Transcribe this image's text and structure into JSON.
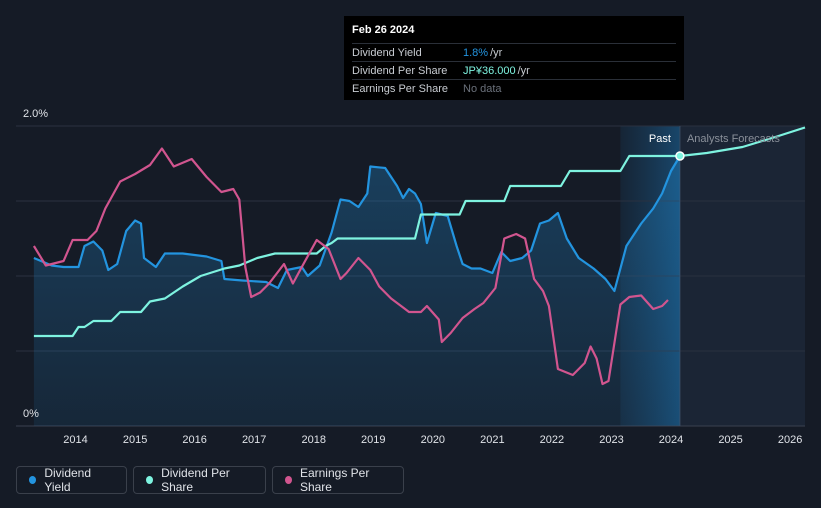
{
  "tooltip": {
    "date": "Feb 26 2024",
    "rows": [
      {
        "label": "Dividend Yield",
        "value": "1.8%",
        "unit": "/yr",
        "color": "#2394df"
      },
      {
        "label": "Dividend Per Share",
        "value": "JP¥36.000",
        "unit": "/yr",
        "color": "#7ef3e0"
      },
      {
        "label": "Earnings Per Share",
        "value": "No data",
        "unit": "",
        "color": "#6b717b"
      }
    ]
  },
  "labels": {
    "past": "Past",
    "forecast": "Analysts Forecasts",
    "y_top": "2.0%",
    "y_bottom": "0%"
  },
  "legend": [
    {
      "label": "Dividend Yield",
      "color": "#2394df"
    },
    {
      "label": "Dividend Per Share",
      "color": "#7ef3e0"
    },
    {
      "label": "Earnings Per Share",
      "color": "#d1558f"
    }
  ],
  "chart_data": {
    "type": "line",
    "x_ticks": [
      "2014",
      "2015",
      "2016",
      "2017",
      "2018",
      "2019",
      "2020",
      "2021",
      "2022",
      "2023",
      "2024",
      "2025",
      "2026"
    ],
    "x_range": [
      2013.0,
      2026.25
    ],
    "ylim": [
      0,
      2.0
    ],
    "y_unit": "%",
    "y_tick_labels": [
      "0%",
      "2.0%"
    ],
    "past_end": 2024.15,
    "highlight_start": 2023.15,
    "series": [
      {
        "name": "Dividend Yield",
        "color": "#2394df",
        "filled": true,
        "points": [
          [
            2013.3,
            1.12
          ],
          [
            2013.6,
            1.07
          ],
          [
            2013.8,
            1.06
          ],
          [
            2014.05,
            1.06
          ],
          [
            2014.15,
            1.2
          ],
          [
            2014.3,
            1.23
          ],
          [
            2014.45,
            1.17
          ],
          [
            2014.55,
            1.04
          ],
          [
            2014.7,
            1.08
          ],
          [
            2014.85,
            1.3
          ],
          [
            2015.0,
            1.37
          ],
          [
            2015.1,
            1.35
          ],
          [
            2015.15,
            1.12
          ],
          [
            2015.35,
            1.06
          ],
          [
            2015.5,
            1.15
          ],
          [
            2015.8,
            1.15
          ],
          [
            2016.2,
            1.13
          ],
          [
            2016.45,
            1.1
          ],
          [
            2016.5,
            0.98
          ],
          [
            2016.8,
            0.97
          ],
          [
            2017.2,
            0.96
          ],
          [
            2017.4,
            0.92
          ],
          [
            2017.55,
            1.04
          ],
          [
            2017.8,
            1.06
          ],
          [
            2017.9,
            1.0
          ],
          [
            2018.1,
            1.07
          ],
          [
            2018.3,
            1.29
          ],
          [
            2018.45,
            1.51
          ],
          [
            2018.6,
            1.5
          ],
          [
            2018.75,
            1.46
          ],
          [
            2018.9,
            1.55
          ],
          [
            2018.95,
            1.73
          ],
          [
            2019.2,
            1.72
          ],
          [
            2019.4,
            1.6
          ],
          [
            2019.5,
            1.52
          ],
          [
            2019.6,
            1.58
          ],
          [
            2019.7,
            1.55
          ],
          [
            2019.8,
            1.48
          ],
          [
            2019.9,
            1.22
          ],
          [
            2020.05,
            1.42
          ],
          [
            2020.25,
            1.4
          ],
          [
            2020.4,
            1.2
          ],
          [
            2020.5,
            1.08
          ],
          [
            2020.65,
            1.05
          ],
          [
            2020.8,
            1.05
          ],
          [
            2021.0,
            1.02
          ],
          [
            2021.15,
            1.16
          ],
          [
            2021.3,
            1.1
          ],
          [
            2021.5,
            1.12
          ],
          [
            2021.65,
            1.17
          ],
          [
            2021.8,
            1.35
          ],
          [
            2021.95,
            1.37
          ],
          [
            2022.1,
            1.42
          ],
          [
            2022.25,
            1.25
          ],
          [
            2022.45,
            1.12
          ],
          [
            2022.7,
            1.05
          ],
          [
            2022.9,
            0.98
          ],
          [
            2023.05,
            0.9
          ],
          [
            2023.25,
            1.2
          ],
          [
            2023.5,
            1.35
          ],
          [
            2023.7,
            1.45
          ],
          [
            2023.85,
            1.55
          ],
          [
            2024.0,
            1.7
          ],
          [
            2024.15,
            1.8
          ]
        ]
      },
      {
        "name": "Dividend Per Share",
        "color": "#7ef3e0",
        "filled": false,
        "points": [
          [
            2013.3,
            0.6
          ],
          [
            2013.95,
            0.6
          ],
          [
            2014.05,
            0.66
          ],
          [
            2014.15,
            0.66
          ],
          [
            2014.3,
            0.7
          ],
          [
            2014.6,
            0.7
          ],
          [
            2014.75,
            0.76
          ],
          [
            2015.1,
            0.76
          ],
          [
            2015.25,
            0.83
          ],
          [
            2015.5,
            0.85
          ],
          [
            2015.8,
            0.93
          ],
          [
            2016.1,
            1.0
          ],
          [
            2016.5,
            1.05
          ],
          [
            2016.75,
            1.07
          ],
          [
            2017.05,
            1.12
          ],
          [
            2017.35,
            1.15
          ],
          [
            2018.05,
            1.15
          ],
          [
            2018.2,
            1.2
          ],
          [
            2018.3,
            1.22
          ],
          [
            2018.4,
            1.25
          ],
          [
            2019.7,
            1.25
          ],
          [
            2019.8,
            1.41
          ],
          [
            2020.45,
            1.41
          ],
          [
            2020.55,
            1.5
          ],
          [
            2021.2,
            1.5
          ],
          [
            2021.3,
            1.6
          ],
          [
            2022.15,
            1.6
          ],
          [
            2022.3,
            1.7
          ],
          [
            2023.15,
            1.7
          ],
          [
            2023.3,
            1.8
          ],
          [
            2024.15,
            1.8
          ],
          [
            2024.6,
            1.82
          ],
          [
            2025.2,
            1.86
          ],
          [
            2025.7,
            1.92
          ],
          [
            2026.25,
            1.99
          ]
        ]
      },
      {
        "name": "Earnings Per Share",
        "color": "#d1558f",
        "filled": false,
        "points": [
          [
            2013.3,
            1.2
          ],
          [
            2013.5,
            1.07
          ],
          [
            2013.8,
            1.1
          ],
          [
            2013.95,
            1.24
          ],
          [
            2014.2,
            1.24
          ],
          [
            2014.35,
            1.3
          ],
          [
            2014.5,
            1.45
          ],
          [
            2014.75,
            1.63
          ],
          [
            2015.0,
            1.68
          ],
          [
            2015.25,
            1.74
          ],
          [
            2015.45,
            1.85
          ],
          [
            2015.65,
            1.73
          ],
          [
            2015.95,
            1.78
          ],
          [
            2016.2,
            1.66
          ],
          [
            2016.45,
            1.56
          ],
          [
            2016.65,
            1.58
          ],
          [
            2016.75,
            1.51
          ],
          [
            2016.85,
            1.06
          ],
          [
            2016.95,
            0.86
          ],
          [
            2017.1,
            0.89
          ],
          [
            2017.25,
            0.95
          ],
          [
            2017.5,
            1.08
          ],
          [
            2017.65,
            0.95
          ],
          [
            2017.8,
            1.06
          ],
          [
            2018.05,
            1.24
          ],
          [
            2018.25,
            1.18
          ],
          [
            2018.45,
            0.98
          ],
          [
            2018.55,
            1.02
          ],
          [
            2018.75,
            1.12
          ],
          [
            2018.95,
            1.04
          ],
          [
            2019.1,
            0.93
          ],
          [
            2019.3,
            0.85
          ],
          [
            2019.5,
            0.79
          ],
          [
            2019.6,
            0.76
          ],
          [
            2019.8,
            0.76
          ],
          [
            2019.9,
            0.8
          ],
          [
            2020.1,
            0.71
          ],
          [
            2020.15,
            0.56
          ],
          [
            2020.3,
            0.62
          ],
          [
            2020.5,
            0.72
          ],
          [
            2020.7,
            0.78
          ],
          [
            2020.85,
            0.82
          ],
          [
            2021.05,
            0.92
          ],
          [
            2021.2,
            1.25
          ],
          [
            2021.4,
            1.28
          ],
          [
            2021.55,
            1.25
          ],
          [
            2021.7,
            0.98
          ],
          [
            2021.85,
            0.9
          ],
          [
            2021.95,
            0.8
          ],
          [
            2022.1,
            0.38
          ],
          [
            2022.35,
            0.34
          ],
          [
            2022.55,
            0.42
          ],
          [
            2022.65,
            0.53
          ],
          [
            2022.75,
            0.45
          ],
          [
            2022.85,
            0.28
          ],
          [
            2022.95,
            0.3
          ],
          [
            2023.15,
            0.81
          ],
          [
            2023.3,
            0.86
          ],
          [
            2023.5,
            0.87
          ],
          [
            2023.7,
            0.78
          ],
          [
            2023.85,
            0.8
          ],
          [
            2023.95,
            0.84
          ]
        ]
      }
    ]
  }
}
